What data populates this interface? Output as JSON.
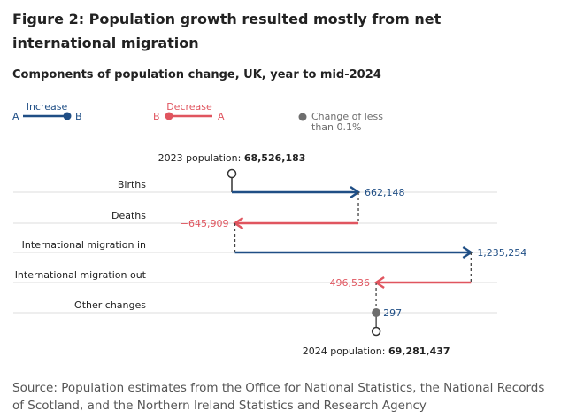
{
  "title": "Figure 2: Population growth resulted mostly from net international migration",
  "chart_data": {
    "type": "waterfall-arrow",
    "title": "Components of population change, UK, year to mid-2024",
    "legend": {
      "increase": {
        "label": "Increase",
        "from": "A",
        "to": "B"
      },
      "decrease": {
        "label": "Decrease",
        "from": "A",
        "to": "B"
      },
      "small": {
        "label_line1": "Change of less",
        "label_line2": "than 0.1%"
      }
    },
    "start": {
      "label": "2023 population: ",
      "value": 68526183,
      "value_text": "68,526,183"
    },
    "end": {
      "label": "2024 population: ",
      "value": 69281437,
      "value_text": "69,281,437"
    },
    "components": [
      {
        "label": "Births",
        "value": 662148,
        "value_text": "662,148",
        "kind": "increase"
      },
      {
        "label": "Deaths",
        "value": -645909,
        "value_text": "−645,909",
        "kind": "decrease"
      },
      {
        "label": "International migration in",
        "value": 1235254,
        "value_text": "1,235,254",
        "kind": "increase"
      },
      {
        "label": "International migration out",
        "value": -496536,
        "value_text": "−496,536",
        "kind": "decrease"
      },
      {
        "label": "Other changes",
        "value": 297,
        "value_text": "297",
        "kind": "small"
      }
    ],
    "colors": {
      "increase": "#1f4e85",
      "decrease": "#e0555f",
      "small": "#6e6e6e",
      "grid": "#dddddd"
    }
  },
  "source": "Source: Population estimates from the Office for National Statistics, the National Records of Scotland, and the Northern Ireland Statistics and Research Agency"
}
